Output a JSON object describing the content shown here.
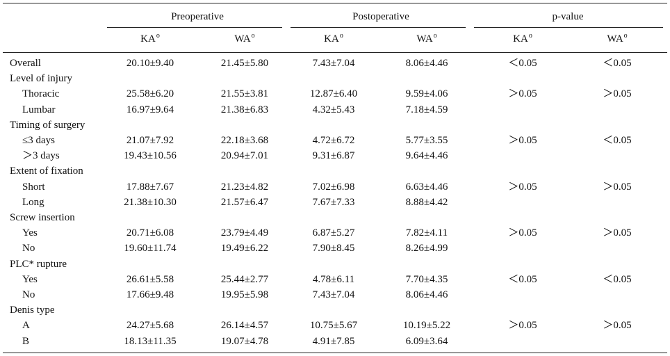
{
  "header": {
    "groups": [
      "Preoperative",
      "Postoperative",
      "p-value"
    ],
    "subcols": [
      {
        "base": "KA",
        "sup": "o"
      },
      {
        "base": "WA",
        "sup": "o"
      },
      {
        "base": "KA",
        "sup": "o"
      },
      {
        "base": "WA",
        "sup": "o"
      },
      {
        "base": "KA",
        "sup": "o"
      },
      {
        "base": "WA",
        "sup": "o"
      }
    ]
  },
  "rows": [
    {
      "label": "Overall",
      "sub": false,
      "values": [
        "20.10±9.40",
        "21.45±5.80",
        "7.43±7.04",
        "8.06±4.46",
        "＜0.05",
        "＜0.05"
      ]
    },
    {
      "label": "Level of injury",
      "sub": false,
      "values": [
        "",
        "",
        "",
        "",
        "",
        ""
      ]
    },
    {
      "label": "Thoracic",
      "sub": true,
      "values": [
        "25.58±6.20",
        "21.55±3.81",
        "12.87±6.40",
        "9.59±4.06",
        "＞0.05",
        "＞0.05"
      ]
    },
    {
      "label": "Lumbar",
      "sub": true,
      "values": [
        "16.97±9.64",
        "21.38±6.83",
        "4.32±5.43",
        "7.18±4.59",
        "",
        ""
      ]
    },
    {
      "label": "Timing of surgery",
      "sub": false,
      "values": [
        "",
        "",
        "",
        "",
        "",
        ""
      ]
    },
    {
      "label": "≤3  days",
      "sub": true,
      "values": [
        "21.07±7.92",
        "22.18±3.68",
        "4.72±6.72",
        "5.77±3.55",
        "＞0.05",
        "＜0.05"
      ]
    },
    {
      "label": "＞3 days",
      "sub": true,
      "values": [
        "19.43±10.56",
        "20.94±7.01",
        "9.31±6.87",
        "9.64±4.46",
        "",
        ""
      ]
    },
    {
      "label": "Extent of fixation",
      "sub": false,
      "values": [
        "",
        "",
        "",
        "",
        "",
        ""
      ]
    },
    {
      "label": "Short",
      "sub": true,
      "values": [
        "17.88±7.67",
        "21.23±4.82",
        "7.02±6.98",
        "6.63±4.46",
        "＞0.05",
        "＞0.05"
      ]
    },
    {
      "label": "Long",
      "sub": true,
      "values": [
        "21.38±10.30",
        "21.57±6.47",
        "7.67±7.33",
        "8.88±4.42",
        "",
        ""
      ]
    },
    {
      "label": "Screw  insertion",
      "sub": false,
      "values": [
        "",
        "",
        "",
        "",
        "",
        ""
      ]
    },
    {
      "label": "Yes",
      "sub": true,
      "values": [
        "20.71±6.08",
        "23.79±4.49",
        "6.87±5.27",
        "7.82±4.11",
        "＞0.05",
        "＞0.05"
      ]
    },
    {
      "label": "No",
      "sub": true,
      "values": [
        "19.60±11.74",
        "19.49±6.22",
        "7.90±8.45",
        "8.26±4.99",
        "",
        ""
      ]
    },
    {
      "label": "PLC* rupture",
      "sub": false,
      "values": [
        "",
        "",
        "",
        "",
        "",
        ""
      ]
    },
    {
      "label": "Yes",
      "sub": true,
      "values": [
        "26.61±5.58",
        "25.44±2.77",
        "4.78±6.11",
        "7.70±4.35",
        "＜0.05",
        "＜0.05"
      ]
    },
    {
      "label": "No",
      "sub": true,
      "values": [
        "17.66±9.48",
        "19.95±5.98",
        "7.43±7.04",
        "8.06±4.46",
        "",
        ""
      ]
    },
    {
      "label": "Denis type",
      "sub": false,
      "values": [
        "",
        "",
        "",
        "",
        "",
        ""
      ]
    },
    {
      "label": "A",
      "sub": true,
      "values": [
        "24.27±5.68",
        "26.14±4.57",
        "10.75±5.67",
        "10.19±5.22",
        "＞0.05",
        "＞0.05"
      ]
    },
    {
      "label": "B",
      "sub": true,
      "values": [
        "18.13±11.35",
        "19.07±4.78",
        "4.91±7.85",
        "6.09±3.64",
        "",
        ""
      ]
    }
  ]
}
